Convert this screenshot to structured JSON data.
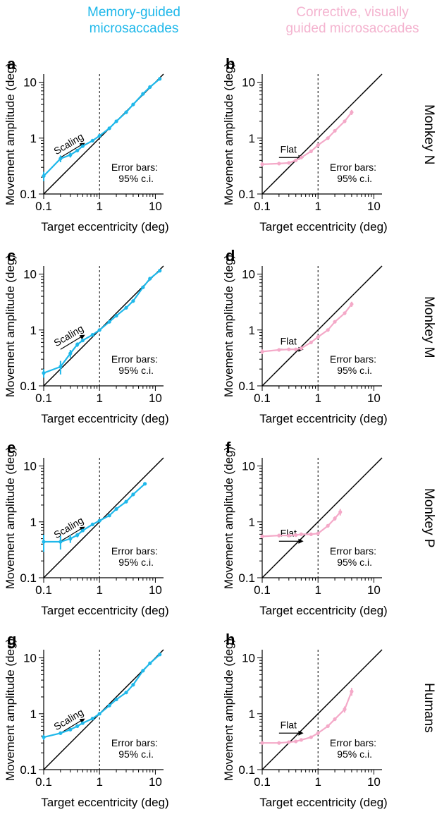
{
  "headers": {
    "left": [
      "Memory-guided",
      "microsaccades"
    ],
    "right": [
      "Corrective, visually",
      "guided microsaccades"
    ]
  },
  "row_labels": [
    "Monkey N",
    "Monkey M",
    "Monkey P",
    "Humans"
  ],
  "colors": {
    "memory": "#1fb8ea",
    "visual": "#f4a9c8",
    "axis": "#000000"
  },
  "chart_data": [
    {
      "panel": "a",
      "type": "line",
      "xlabel": "Target eccentricity (deg)",
      "ylabel": "Movement amplitude (deg)",
      "xlim": [
        0.1,
        14
      ],
      "ylim": [
        0.1,
        14
      ],
      "xscale": "log",
      "yscale": "log",
      "xticks": [
        "0.1",
        "1",
        "10"
      ],
      "yticks": [
        "0.1",
        "1",
        "10"
      ],
      "annotation": "Scaling",
      "note": [
        "Error bars:",
        "95% c.i."
      ],
      "series": [
        {
          "color": "#1fb8ea",
          "x": [
            0.1,
            0.2,
            0.3,
            0.4,
            0.5,
            0.75,
            1.0,
            1.5,
            2.0,
            3.0,
            4.0,
            6.0,
            8.0,
            12.0
          ],
          "y": [
            0.21,
            0.43,
            0.5,
            0.6,
            0.72,
            0.9,
            1.1,
            1.5,
            2.0,
            2.9,
            4.0,
            6.2,
            8.2,
            11.5
          ],
          "err": [
            0.04,
            0.06,
            0.05,
            0.03,
            0.03,
            0.03,
            0.04,
            0.05,
            0.06,
            0.08,
            0.1,
            0.15,
            0.2,
            0.3
          ]
        }
      ]
    },
    {
      "panel": "b",
      "type": "line",
      "xlabel": "Target eccentricity (deg)",
      "ylabel": "Movement amplitude (deg)",
      "xlim": [
        0.1,
        14
      ],
      "ylim": [
        0.1,
        14
      ],
      "xscale": "log",
      "yscale": "log",
      "xticks": [
        "0.1",
        "1",
        "10"
      ],
      "yticks": [
        "0.1",
        "1",
        "10"
      ],
      "annotation": "Flat",
      "note": [
        "Error bars:",
        "95% c.i."
      ],
      "series": [
        {
          "color": "#f4a9c8",
          "x": [
            0.1,
            0.2,
            0.3,
            0.4,
            0.5,
            0.75,
            1.0,
            1.5,
            2.0,
            3.0,
            4.0
          ],
          "y": [
            0.34,
            0.35,
            0.36,
            0.4,
            0.45,
            0.58,
            0.75,
            1.0,
            1.35,
            2.0,
            2.9
          ],
          "err": [
            0.03,
            0.02,
            0.02,
            0.02,
            0.02,
            0.02,
            0.03,
            0.05,
            0.08,
            0.15,
            0.3
          ]
        }
      ]
    },
    {
      "panel": "c",
      "type": "line",
      "xlabel": "Target eccentricity (deg)",
      "ylabel": "Movement amplitude (deg)",
      "xlim": [
        0.1,
        14
      ],
      "ylim": [
        0.1,
        14
      ],
      "xscale": "log",
      "yscale": "log",
      "xticks": [
        "0.1",
        "1",
        "10"
      ],
      "yticks": [
        "0.1",
        "1",
        "10"
      ],
      "annotation": "Scaling",
      "note": [
        "Error bars:",
        "95% c.i."
      ],
      "series": [
        {
          "color": "#1fb8ea",
          "x": [
            0.1,
            0.2,
            0.3,
            0.4,
            0.5,
            0.75,
            1.0,
            1.5,
            2.0,
            3.0,
            4.0,
            6.0,
            8.0,
            12.0
          ],
          "y": [
            0.17,
            0.22,
            0.38,
            0.55,
            0.65,
            0.82,
            1.0,
            1.4,
            1.8,
            2.5,
            3.3,
            5.8,
            8.3,
            11.5
          ],
          "err": [
            0.03,
            0.06,
            0.06,
            0.05,
            0.04,
            0.04,
            0.04,
            0.05,
            0.06,
            0.08,
            0.1,
            0.15,
            0.2,
            0.3
          ]
        }
      ]
    },
    {
      "panel": "d",
      "type": "line",
      "xlabel": "Target eccentricity (deg)",
      "ylabel": "Movement amplitude (deg)",
      "xlim": [
        0.1,
        14
      ],
      "ylim": [
        0.1,
        14
      ],
      "xscale": "log",
      "yscale": "log",
      "xticks": [
        "0.1",
        "1",
        "10"
      ],
      "yticks": [
        "0.1",
        "1",
        "10"
      ],
      "annotation": "Flat",
      "note": [
        "Error bars:",
        "95% c.i."
      ],
      "series": [
        {
          "color": "#f4a9c8",
          "x": [
            0.1,
            0.2,
            0.3,
            0.4,
            0.5,
            0.75,
            1.0,
            1.5,
            2.0,
            3.0,
            4.0
          ],
          "y": [
            0.41,
            0.44,
            0.45,
            0.45,
            0.47,
            0.6,
            0.75,
            1.0,
            1.4,
            2.0,
            2.9
          ],
          "err": [
            0.04,
            0.03,
            0.02,
            0.02,
            0.02,
            0.02,
            0.03,
            0.05,
            0.08,
            0.15,
            0.3
          ]
        }
      ]
    },
    {
      "panel": "e",
      "type": "line",
      "xlabel": "Target eccentricity (deg)",
      "ylabel": "Movement amplitude (deg)",
      "xlim": [
        0.1,
        14
      ],
      "ylim": [
        0.1,
        14
      ],
      "xscale": "log",
      "yscale": "log",
      "xticks": [
        "0.1",
        "1",
        "10"
      ],
      "yticks": [
        "0.1",
        "1",
        "10"
      ],
      "annotation": "Scaling",
      "note": [
        "Error bars:",
        "95% c.i."
      ],
      "series": [
        {
          "color": "#1fb8ea",
          "x": [
            0.1,
            0.2,
            0.3,
            0.4,
            0.5,
            0.75,
            1.0,
            1.5,
            2.0,
            3.0,
            4.0,
            6.5
          ],
          "y": [
            0.44,
            0.44,
            0.5,
            0.58,
            0.7,
            0.9,
            1.05,
            1.3,
            1.7,
            2.3,
            3.1,
            4.8
          ],
          "err": [
            0.15,
            0.12,
            0.08,
            0.05,
            0.04,
            0.04,
            0.05,
            0.05,
            0.06,
            0.08,
            0.1,
            0.2
          ]
        }
      ]
    },
    {
      "panel": "f",
      "type": "line",
      "xlabel": "Target eccentricity (deg)",
      "ylabel": "Movement amplitude (deg)",
      "xlim": [
        0.1,
        14
      ],
      "ylim": [
        0.1,
        14
      ],
      "xscale": "log",
      "yscale": "log",
      "xticks": [
        "0.1",
        "1",
        "10"
      ],
      "yticks": [
        "0.1",
        "1",
        "10"
      ],
      "annotation": "Flat",
      "note": [
        "Error bars:",
        "95% c.i."
      ],
      "series": [
        {
          "color": "#f4a9c8",
          "x": [
            0.1,
            0.2,
            0.3,
            0.4,
            0.5,
            0.75,
            1.0,
            1.5,
            2.0,
            2.5
          ],
          "y": [
            0.55,
            0.57,
            0.57,
            0.58,
            0.6,
            0.6,
            0.62,
            0.85,
            1.15,
            1.5
          ],
          "err": [
            0.04,
            0.04,
            0.03,
            0.03,
            0.03,
            0.03,
            0.04,
            0.05,
            0.1,
            0.2
          ]
        }
      ]
    },
    {
      "panel": "g",
      "type": "line",
      "xlabel": "Target eccentricity (deg)",
      "ylabel": "Movement amplitude (deg)",
      "xlim": [
        0.1,
        14
      ],
      "ylim": [
        0.1,
        14
      ],
      "xscale": "log",
      "yscale": "log",
      "xticks": [
        "0.1",
        "1",
        "10"
      ],
      "yticks": [
        "0.1",
        "1",
        "10"
      ],
      "annotation": "Scaling",
      "note": [
        "Error bars:",
        "95% c.i."
      ],
      "series": [
        {
          "color": "#1fb8ea",
          "x": [
            0.1,
            0.2,
            0.3,
            0.4,
            0.5,
            0.75,
            1.0,
            1.5,
            2.0,
            3.0,
            4.0,
            6.0,
            8.0,
            12.0
          ],
          "y": [
            0.38,
            0.45,
            0.52,
            0.6,
            0.68,
            0.82,
            1.0,
            1.4,
            1.8,
            2.4,
            3.3,
            5.9,
            8.0,
            11.5
          ],
          "err": [
            0.04,
            0.03,
            0.03,
            0.03,
            0.03,
            0.03,
            0.04,
            0.05,
            0.06,
            0.08,
            0.1,
            0.15,
            0.2,
            0.3
          ]
        }
      ]
    },
    {
      "panel": "h",
      "type": "line",
      "xlabel": "Target eccentricity (deg)",
      "ylabel": "Movement amplitude (deg)",
      "xlim": [
        0.1,
        14
      ],
      "ylim": [
        0.1,
        14
      ],
      "xscale": "log",
      "yscale": "log",
      "xticks": [
        "0.1",
        "1",
        "10"
      ],
      "yticks": [
        "0.1",
        "1",
        "10"
      ],
      "annotation": "Flat",
      "note": [
        "Error bars:",
        "95% c.i."
      ],
      "series": [
        {
          "color": "#f4a9c8",
          "x": [
            0.1,
            0.2,
            0.3,
            0.4,
            0.5,
            0.75,
            1.0,
            1.5,
            2.0,
            3.0,
            4.0
          ],
          "y": [
            0.3,
            0.3,
            0.31,
            0.32,
            0.34,
            0.38,
            0.45,
            0.6,
            0.8,
            1.2,
            2.5
          ],
          "err": [
            0.02,
            0.02,
            0.02,
            0.02,
            0.02,
            0.02,
            0.03,
            0.04,
            0.06,
            0.15,
            0.4
          ]
        }
      ]
    }
  ]
}
